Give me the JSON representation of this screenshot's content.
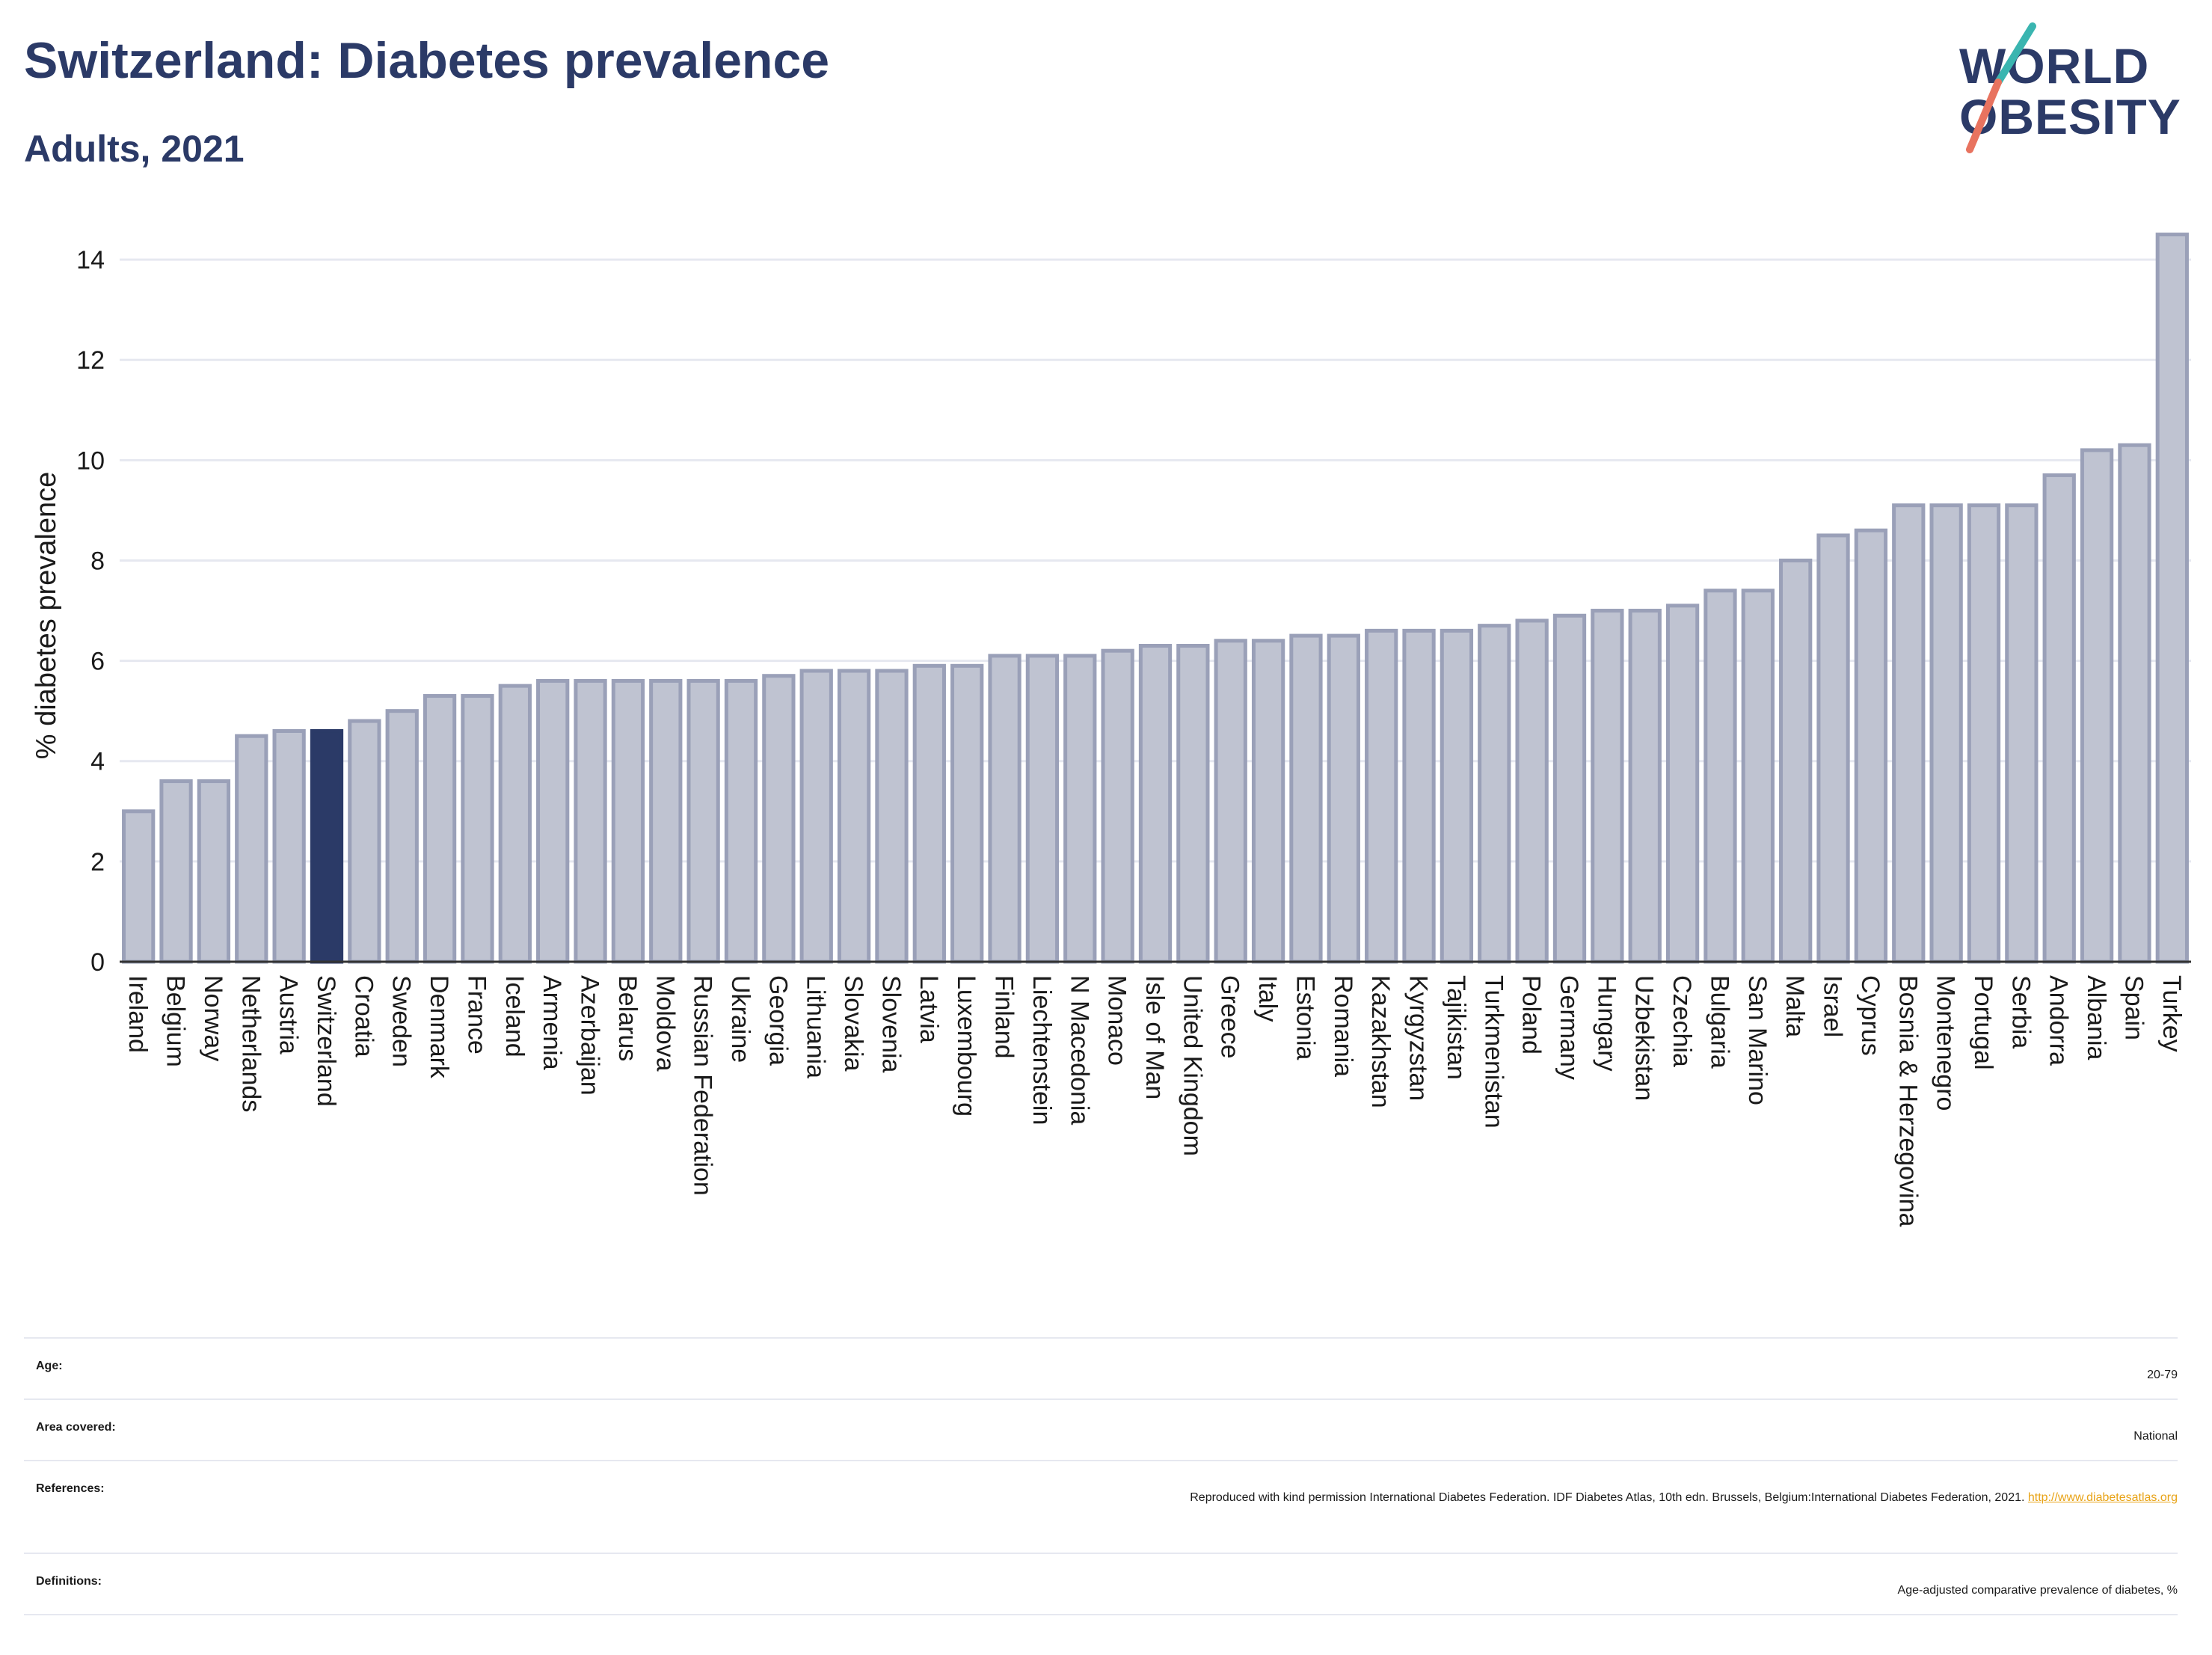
{
  "header": {
    "title": "Switzerland: Diabetes prevalence",
    "subtitle": "Adults, 2021"
  },
  "logo": {
    "line1": "WORLD",
    "line2": "OBESITY"
  },
  "colors": {
    "bar": "#bfc3d1",
    "bar_stroke": "#9aa0b8",
    "highlight": "#2b3a67",
    "grid": "#e6e8f0",
    "title": "#2b3a67",
    "link": "#e8a317"
  },
  "chart_data": {
    "type": "bar",
    "title": "Switzerland: Diabetes prevalence",
    "subtitle": "Adults, 2021",
    "xlabel": "",
    "ylabel": "% diabetes prevalence",
    "ylim": [
      0,
      15
    ],
    "yticks": [
      0,
      2,
      4,
      6,
      8,
      10,
      12,
      14
    ],
    "grid": true,
    "highlight": "Switzerland",
    "categories": [
      "Ireland",
      "Belgium",
      "Norway",
      "Netherlands",
      "Austria",
      "Switzerland",
      "Croatia",
      "Sweden",
      "Denmark",
      "France",
      "Iceland",
      "Armenia",
      "Azerbaijan",
      "Belarus",
      "Moldova",
      "Russian Federation",
      "Ukraine",
      "Georgia",
      "Lithuania",
      "Slovakia",
      "Slovenia",
      "Latvia",
      "Luxembourg",
      "Finland",
      "Liechtenstein",
      "N Macedonia",
      "Monaco",
      "Isle of Man",
      "United Kingdom",
      "Greece",
      "Italy",
      "Estonia",
      "Romania",
      "Kazakhstan",
      "Kyrgyzstan",
      "Tajikistan",
      "Turkmenistan",
      "Poland",
      "Germany",
      "Hungary",
      "Uzbekistan",
      "Czechia",
      "Bulgaria",
      "San Marino",
      "Malta",
      "Israel",
      "Cyprus",
      "Bosnia & Herzegovina",
      "Montenegro",
      "Portugal",
      "Serbia",
      "Andorra",
      "Albania",
      "Spain",
      "Turkey"
    ],
    "values": [
      3.0,
      3.6,
      3.6,
      4.5,
      4.6,
      4.6,
      4.8,
      5.0,
      5.3,
      5.3,
      5.5,
      5.6,
      5.6,
      5.6,
      5.6,
      5.6,
      5.6,
      5.7,
      5.8,
      5.8,
      5.8,
      5.9,
      5.9,
      6.1,
      6.1,
      6.1,
      6.2,
      6.3,
      6.3,
      6.4,
      6.4,
      6.5,
      6.5,
      6.6,
      6.6,
      6.6,
      6.7,
      6.8,
      6.9,
      7.0,
      7.0,
      7.1,
      7.4,
      7.4,
      8.0,
      8.5,
      8.6,
      9.1,
      9.1,
      9.1,
      9.1,
      9.7,
      10.2,
      10.3,
      14.5
    ]
  },
  "meta": {
    "age_label": "Age:",
    "age_value": "20-79",
    "area_label": "Area covered:",
    "area_value": "National",
    "references_label": "References:",
    "references_text": "Reproduced with kind permission International Diabetes Federation.  IDF Diabetes Atlas, 10th edn. Brussels, Belgium:International Diabetes Federation, 2021.",
    "references_link": "http://www.diabetesatlas.org",
    "definitions_label": "Definitions:",
    "definitions_value": "Age-adjusted comparative prevalence of diabetes, %"
  }
}
